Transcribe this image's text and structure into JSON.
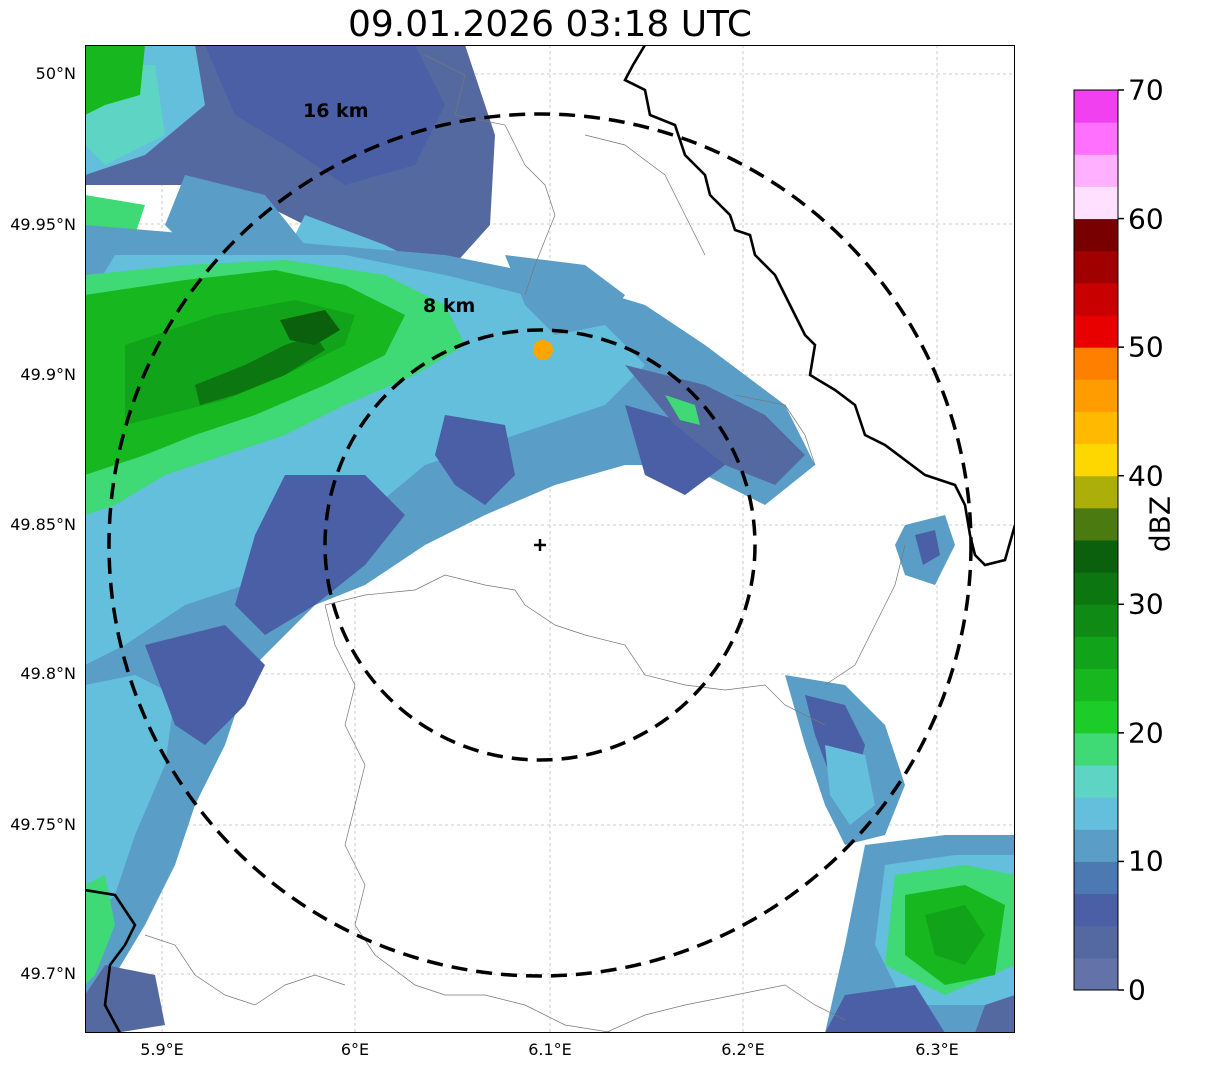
{
  "title": "09.01.2026 03:18 UTC",
  "map": {
    "lat_ticks": [
      "50°N",
      "49.95°N",
      "49.9°N",
      "49.85°N",
      "49.8°N",
      "49.75°N",
      "49.7°N"
    ],
    "lon_ticks": [
      "5.9°E",
      "6°E",
      "6.1°E",
      "6.2°E",
      "6.3°E"
    ],
    "rings": [
      {
        "label": "8 km",
        "radius_km": 8
      },
      {
        "label": "16 km",
        "radius_km": 16
      }
    ],
    "radar_site": {
      "lat": 49.843,
      "lon": 6.095,
      "icon": "plus-marker-icon"
    }
  },
  "colorbar": {
    "label": "dBZ",
    "ticks": [
      "0",
      "10",
      "20",
      "30",
      "40",
      "50",
      "60",
      "70"
    ],
    "range": [
      0,
      70
    ],
    "colors": [
      "#6373a9",
      "#5569a1",
      "#4a5fa5",
      "#4c79b1",
      "#5a9ec8",
      "#63bfdb",
      "#5ed4c4",
      "#3fd975",
      "#1ccc28",
      "#17b81f",
      "#11a31a",
      "#0f8b15",
      "#0c7610",
      "#0a600d",
      "#4a7a10",
      "#acae09",
      "#ffd700",
      "#ffba00",
      "#ff9d00",
      "#ff7f00",
      "#e80000",
      "#c80000",
      "#a00000",
      "#780000",
      "#ffe0ff",
      "#ffb0ff",
      "#ff70ff",
      "#f040f0"
    ]
  },
  "palette": {
    "dark_blue": "#4a5fa5",
    "mid_blue": "#5a9ec8",
    "cyan": "#63bfdb",
    "teal": "#5ed4c4",
    "light_green": "#3fd975",
    "green": "#17b81f",
    "dark_green": "#0c7610",
    "orange": "#ffa500"
  }
}
